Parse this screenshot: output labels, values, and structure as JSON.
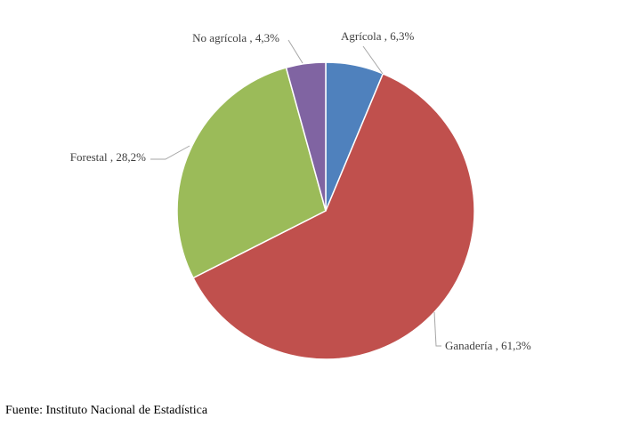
{
  "chart_data": {
    "type": "pie",
    "slices": [
      {
        "label": "Agrícola",
        "value": 6.3,
        "value_text": "6,3%",
        "color": "#4F81BD"
      },
      {
        "label": "Ganadería",
        "value": 61.3,
        "value_text": "61,3%",
        "color": "#C0504D"
      },
      {
        "label": "Forestal",
        "value": 28.2,
        "value_text": "28,2%",
        "color": "#9BBB59"
      },
      {
        "label": "No agrícola",
        "value": 4.3,
        "value_text": "4,3%",
        "color": "#8064A2"
      }
    ],
    "start_angle": "12 o'clock",
    "direction": "clockwise",
    "legend": "none",
    "labels": "outside with leader lines"
  },
  "source_note": "Fuente: Instituto Nacional de Estadística"
}
